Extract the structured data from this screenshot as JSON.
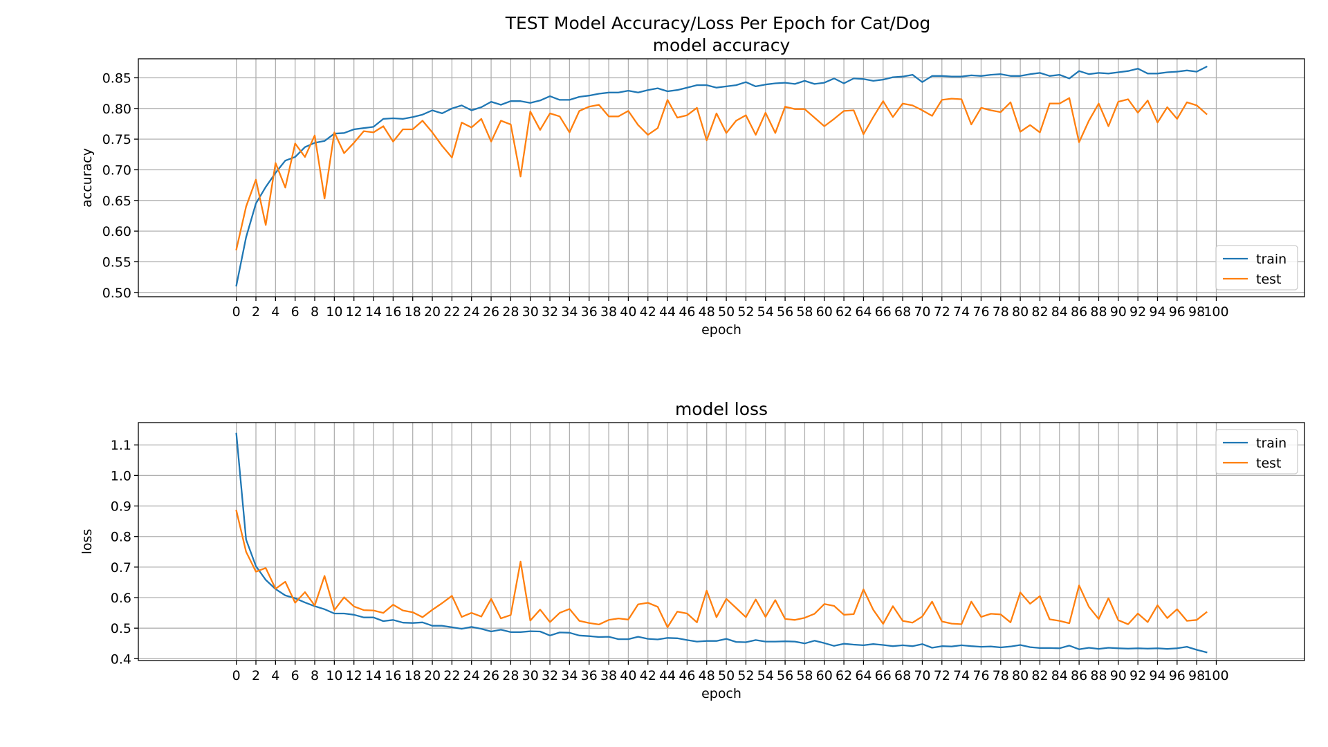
{
  "figure": {
    "suptitle": "TEST Model Accuracy/Loss Per Epoch for Cat/Dog"
  },
  "colors": {
    "train": "#1f77b4",
    "test": "#ff7f0e",
    "grid": "#b0b0b0"
  },
  "chart_data": [
    {
      "type": "line",
      "title": "model accuracy",
      "xlabel": "epoch",
      "ylabel": "accuracy",
      "xlim": [
        -10,
        109
      ],
      "ylim": [
        0.493,
        0.881
      ],
      "xticks": [
        0,
        2,
        4,
        6,
        8,
        10,
        12,
        14,
        16,
        18,
        20,
        22,
        24,
        26,
        28,
        30,
        32,
        34,
        36,
        38,
        40,
        42,
        44,
        46,
        48,
        50,
        52,
        54,
        56,
        58,
        60,
        62,
        64,
        66,
        68,
        70,
        72,
        74,
        76,
        78,
        80,
        82,
        84,
        86,
        88,
        90,
        92,
        94,
        96,
        98,
        100
      ],
      "yticks": [
        "0.50",
        "0.55",
        "0.60",
        "0.65",
        "0.70",
        "0.75",
        "0.80",
        "0.85"
      ],
      "grid": true,
      "legend_position": "lower-right",
      "x": [
        0,
        1,
        2,
        3,
        4,
        5,
        6,
        7,
        8,
        9,
        10,
        11,
        12,
        13,
        14,
        15,
        16,
        17,
        18,
        19,
        20,
        21,
        22,
        23,
        24,
        25,
        26,
        27,
        28,
        29,
        30,
        31,
        32,
        33,
        34,
        35,
        36,
        37,
        38,
        39,
        40,
        41,
        42,
        43,
        44,
        45,
        46,
        47,
        48,
        49,
        50,
        51,
        52,
        53,
        54,
        55,
        56,
        57,
        58,
        59,
        60,
        61,
        62,
        63,
        64,
        65,
        66,
        67,
        68,
        69,
        70,
        71,
        72,
        73,
        74,
        75,
        76,
        77,
        78,
        79,
        80,
        81,
        82,
        83,
        84,
        85,
        86,
        87,
        88,
        89,
        90,
        91,
        92,
        93,
        94,
        95,
        96,
        97,
        98,
        99
      ],
      "series": [
        {
          "name": "train",
          "values": [
            0.511,
            0.59,
            0.645,
            0.672,
            0.695,
            0.715,
            0.721,
            0.737,
            0.744,
            0.747,
            0.759,
            0.76,
            0.766,
            0.768,
            0.77,
            0.783,
            0.784,
            0.783,
            0.786,
            0.79,
            0.797,
            0.792,
            0.8,
            0.805,
            0.797,
            0.802,
            0.811,
            0.806,
            0.812,
            0.812,
            0.809,
            0.813,
            0.82,
            0.814,
            0.814,
            0.819,
            0.821,
            0.824,
            0.826,
            0.826,
            0.829,
            0.826,
            0.83,
            0.833,
            0.828,
            0.83,
            0.834,
            0.838,
            0.838,
            0.834,
            0.836,
            0.838,
            0.843,
            0.836,
            0.839,
            0.841,
            0.842,
            0.84,
            0.845,
            0.84,
            0.842,
            0.849,
            0.841,
            0.849,
            0.848,
            0.845,
            0.847,
            0.851,
            0.852,
            0.855,
            0.843,
            0.853,
            0.853,
            0.852,
            0.852,
            0.854,
            0.853,
            0.855,
            0.856,
            0.853,
            0.853,
            0.856,
            0.858,
            0.853,
            0.855,
            0.849,
            0.861,
            0.856,
            0.858,
            0.857,
            0.859,
            0.861,
            0.865,
            0.857,
            0.857,
            0.859,
            0.86,
            0.862,
            0.86,
            0.868
          ]
        },
        {
          "name": "test",
          "values": [
            0.57,
            0.64,
            0.684,
            0.61,
            0.711,
            0.671,
            0.743,
            0.721,
            0.756,
            0.653,
            0.761,
            0.727,
            0.744,
            0.763,
            0.761,
            0.771,
            0.746,
            0.766,
            0.766,
            0.78,
            0.761,
            0.739,
            0.72,
            0.777,
            0.769,
            0.783,
            0.746,
            0.78,
            0.774,
            0.689,
            0.795,
            0.765,
            0.792,
            0.787,
            0.761,
            0.796,
            0.803,
            0.806,
            0.787,
            0.787,
            0.796,
            0.773,
            0.757,
            0.768,
            0.814,
            0.785,
            0.789,
            0.801,
            0.748,
            0.792,
            0.76,
            0.78,
            0.789,
            0.757,
            0.793,
            0.76,
            0.803,
            0.799,
            0.799,
            0.785,
            0.771,
            0.783,
            0.796,
            0.797,
            0.758,
            0.786,
            0.812,
            0.786,
            0.808,
            0.805,
            0.797,
            0.788,
            0.814,
            0.816,
            0.815,
            0.774,
            0.801,
            0.797,
            0.794,
            0.81,
            0.762,
            0.773,
            0.761,
            0.808,
            0.808,
            0.817,
            0.745,
            0.78,
            0.808,
            0.771,
            0.811,
            0.815,
            0.793,
            0.813,
            0.777,
            0.802,
            0.783,
            0.81,
            0.805,
            0.791
          ]
        }
      ]
    },
    {
      "type": "line",
      "title": "model loss",
      "xlabel": "epoch",
      "ylabel": "loss",
      "xlim": [
        -10,
        109
      ],
      "ylim": [
        0.394,
        1.173
      ],
      "xticks": [
        0,
        2,
        4,
        6,
        8,
        10,
        12,
        14,
        16,
        18,
        20,
        22,
        24,
        26,
        28,
        30,
        32,
        34,
        36,
        38,
        40,
        42,
        44,
        46,
        48,
        50,
        52,
        54,
        56,
        58,
        60,
        62,
        64,
        66,
        68,
        70,
        72,
        74,
        76,
        78,
        80,
        82,
        84,
        86,
        88,
        90,
        92,
        94,
        96,
        98,
        100
      ],
      "yticks": [
        "0.4",
        "0.5",
        "0.6",
        "0.7",
        "0.8",
        "0.9",
        "1.0",
        "1.1"
      ],
      "grid": true,
      "legend_position": "upper-right",
      "x": [
        0,
        1,
        2,
        3,
        4,
        5,
        6,
        7,
        8,
        9,
        10,
        11,
        12,
        13,
        14,
        15,
        16,
        17,
        18,
        19,
        20,
        21,
        22,
        23,
        24,
        25,
        26,
        27,
        28,
        29,
        30,
        31,
        32,
        33,
        34,
        35,
        36,
        37,
        38,
        39,
        40,
        41,
        42,
        43,
        44,
        45,
        46,
        47,
        48,
        49,
        50,
        51,
        52,
        53,
        54,
        55,
        56,
        57,
        58,
        59,
        60,
        61,
        62,
        63,
        64,
        65,
        66,
        67,
        68,
        69,
        70,
        71,
        72,
        73,
        74,
        75,
        76,
        77,
        78,
        79,
        80,
        81,
        82,
        83,
        84,
        85,
        86,
        87,
        88,
        89,
        90,
        91,
        92,
        93,
        94,
        95,
        96,
        97,
        98,
        99
      ],
      "series": [
        {
          "name": "train",
          "values": [
            1.137,
            0.79,
            0.703,
            0.658,
            0.628,
            0.607,
            0.598,
            0.584,
            0.572,
            0.562,
            0.548,
            0.548,
            0.544,
            0.535,
            0.535,
            0.523,
            0.527,
            0.518,
            0.517,
            0.519,
            0.508,
            0.508,
            0.503,
            0.498,
            0.504,
            0.498,
            0.489,
            0.495,
            0.487,
            0.487,
            0.49,
            0.489,
            0.476,
            0.486,
            0.485,
            0.476,
            0.474,
            0.471,
            0.472,
            0.464,
            0.464,
            0.472,
            0.465,
            0.463,
            0.468,
            0.467,
            0.461,
            0.456,
            0.458,
            0.458,
            0.465,
            0.455,
            0.454,
            0.461,
            0.456,
            0.456,
            0.457,
            0.456,
            0.45,
            0.459,
            0.451,
            0.442,
            0.449,
            0.446,
            0.444,
            0.448,
            0.445,
            0.441,
            0.444,
            0.441,
            0.448,
            0.436,
            0.441,
            0.44,
            0.444,
            0.441,
            0.439,
            0.44,
            0.437,
            0.44,
            0.445,
            0.438,
            0.435,
            0.435,
            0.434,
            0.443,
            0.431,
            0.436,
            0.432,
            0.436,
            0.434,
            0.433,
            0.434,
            0.433,
            0.434,
            0.432,
            0.434,
            0.439,
            0.429,
            0.421
          ]
        },
        {
          "name": "test",
          "values": [
            0.885,
            0.75,
            0.685,
            0.697,
            0.629,
            0.652,
            0.583,
            0.618,
            0.574,
            0.671,
            0.559,
            0.601,
            0.571,
            0.559,
            0.558,
            0.55,
            0.577,
            0.558,
            0.552,
            0.536,
            0.56,
            0.582,
            0.606,
            0.537,
            0.55,
            0.538,
            0.596,
            0.532,
            0.543,
            0.718,
            0.525,
            0.561,
            0.52,
            0.55,
            0.563,
            0.524,
            0.517,
            0.512,
            0.527,
            0.532,
            0.528,
            0.578,
            0.583,
            0.57,
            0.503,
            0.554,
            0.548,
            0.519,
            0.623,
            0.536,
            0.596,
            0.566,
            0.536,
            0.594,
            0.537,
            0.592,
            0.53,
            0.527,
            0.534,
            0.547,
            0.579,
            0.573,
            0.544,
            0.546,
            0.627,
            0.56,
            0.514,
            0.572,
            0.524,
            0.518,
            0.538,
            0.587,
            0.522,
            0.515,
            0.513,
            0.587,
            0.537,
            0.547,
            0.545,
            0.519,
            0.617,
            0.58,
            0.605,
            0.529,
            0.524,
            0.516,
            0.64,
            0.57,
            0.53,
            0.598,
            0.526,
            0.513,
            0.548,
            0.52,
            0.575,
            0.533,
            0.562,
            0.524,
            0.527,
            0.552
          ]
        }
      ]
    }
  ]
}
